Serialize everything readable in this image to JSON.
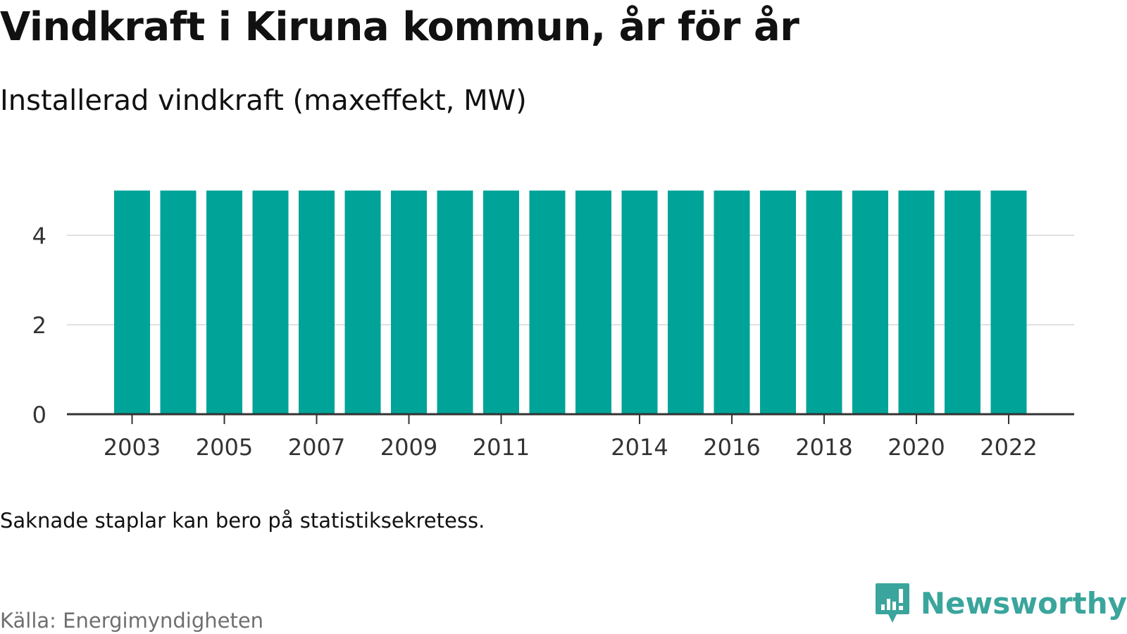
{
  "header": {
    "title": "Vindkraft i Kiruna kommun, år för år",
    "subtitle": "Installerad vindkraft (maxeffekt, MW)"
  },
  "footer": {
    "note": "Saknade staplar kan bero på statistiksekretess.",
    "source": "Källa: Energimyndigheten",
    "brand": "Newsworthy"
  },
  "colors": {
    "bar": "#00a398",
    "grid": "#e0e0e0",
    "axis": "#333333",
    "brand": "#3aa59c"
  },
  "chart_data": {
    "type": "bar",
    "title": "Vindkraft i Kiruna kommun, år för år",
    "subtitle": "Installerad vindkraft (maxeffekt, MW)",
    "xlabel": "",
    "ylabel": "",
    "categories": [
      "2003",
      "2004",
      "2005",
      "2006",
      "2007",
      "2008",
      "2009",
      "2010",
      "2011",
      "2012",
      "2013",
      "2014",
      "2015",
      "2016",
      "2017",
      "2018",
      "2019",
      "2020",
      "2021",
      "2022"
    ],
    "values": [
      5,
      5,
      5,
      5,
      5,
      5,
      5,
      5,
      5,
      5,
      5,
      5,
      5,
      5,
      5,
      5,
      5,
      5,
      5,
      5
    ],
    "x_tick_labels": [
      "2003",
      "2005",
      "2007",
      "2009",
      "2011",
      "2014",
      "2016",
      "2018",
      "2020",
      "2022"
    ],
    "y_ticks": [
      0,
      2,
      4
    ],
    "ylim": [
      0,
      5
    ],
    "grid": true,
    "legend": false
  }
}
